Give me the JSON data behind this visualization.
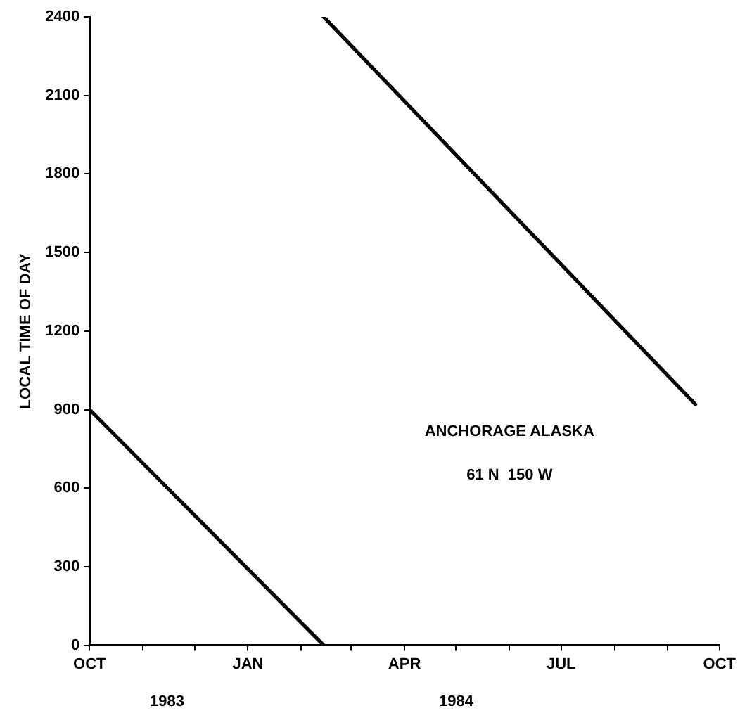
{
  "chart_data": {
    "type": "line",
    "ylabel": "LOCAL TIME OF DAY",
    "annotations": [
      "ANCHORAGE ALASKA",
      "61 N  150 W",
      "1983",
      "1984"
    ],
    "series": [
      {
        "color": "#000000",
        "x": [
          "1983-10-01",
          "1984-02-14"
        ],
        "values": [
          900,
          0
        ]
      },
      {
        "color": "#000000",
        "x": [
          "1984-02-14",
          "1984-09-17"
        ],
        "values": [
          2400,
          920
        ]
      }
    ],
    "xlim": [
      "1983-10-01",
      "1984-10-01"
    ],
    "xticks": [
      {
        "value": "1983-10-01",
        "label": "OCT"
      },
      {
        "value": "1983-11-01",
        "label": null
      },
      {
        "value": "1983-12-01",
        "label": null
      },
      {
        "value": "1984-01-01",
        "label": "JAN"
      },
      {
        "value": "1984-02-01",
        "label": null
      },
      {
        "value": "1984-03-01",
        "label": null
      },
      {
        "value": "1984-04-01",
        "label": "APR"
      },
      {
        "value": "1984-05-01",
        "label": null
      },
      {
        "value": "1984-06-01",
        "label": null
      },
      {
        "value": "1984-07-01",
        "label": "JUL"
      },
      {
        "value": "1984-08-01",
        "label": null
      },
      {
        "value": "1984-09-01",
        "label": null
      },
      {
        "value": "1984-10-01",
        "label": "OCT"
      }
    ],
    "ylim": [
      0,
      2400
    ],
    "yticks": [
      0,
      300,
      600,
      900,
      1200,
      1500,
      1800,
      2100,
      2400
    ],
    "grid": false,
    "legend": false,
    "marker": "none",
    "line_style": "solid"
  }
}
